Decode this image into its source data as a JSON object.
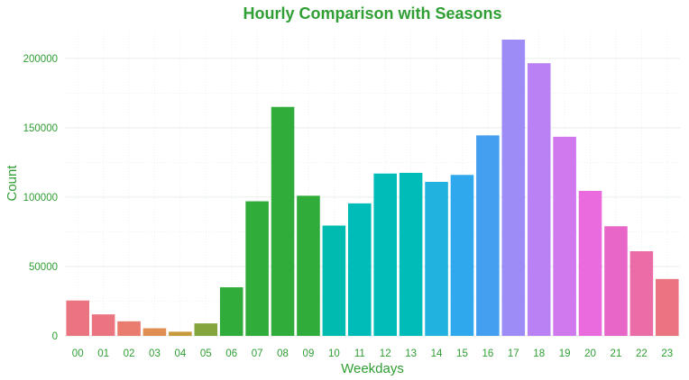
{
  "chart_data": {
    "type": "bar",
    "title": "Hourly Comparison with Seasons",
    "xlabel": "Weekdays",
    "ylabel": "Count",
    "categories": [
      "00",
      "01",
      "02",
      "03",
      "04",
      "05",
      "06",
      "07",
      "08",
      "09",
      "10",
      "11",
      "12",
      "13",
      "14",
      "15",
      "16",
      "17",
      "18",
      "19",
      "20",
      "21",
      "22",
      "23"
    ],
    "values": [
      25500,
      15500,
      10500,
      5500,
      3000,
      9000,
      35000,
      97000,
      165000,
      101000,
      79500,
      95500,
      117000,
      117500,
      111000,
      116000,
      144500,
      213500,
      196500,
      143500,
      104500,
      79000,
      61000,
      41000
    ],
    "ylim": [
      0,
      220000
    ],
    "y_ticks": [
      0,
      50000,
      100000,
      150000,
      200000
    ],
    "y_tick_labels": [
      "0",
      "50000",
      "100000",
      "150000",
      "200000"
    ],
    "grid": true,
    "legend": "none"
  },
  "colors": {
    "text": "#2f9e33",
    "grid": "#e7efe7",
    "bars": [
      "#ea7580",
      "#ea7580",
      "#e97b6f",
      "#e18e55",
      "#c79a3d",
      "#83a53b",
      "#2fac39",
      "#2fac39",
      "#2fac39",
      "#2fac39",
      "#00bcb0",
      "#00bcb8",
      "#00bcb8",
      "#00bcb8",
      "#22b2e0",
      "#30a8ee",
      "#459ff0",
      "#9d8cf5",
      "#b981f3",
      "#d078ed",
      "#ea6bdd",
      "#e866c8",
      "#ea6da7",
      "#ea7581"
    ]
  }
}
